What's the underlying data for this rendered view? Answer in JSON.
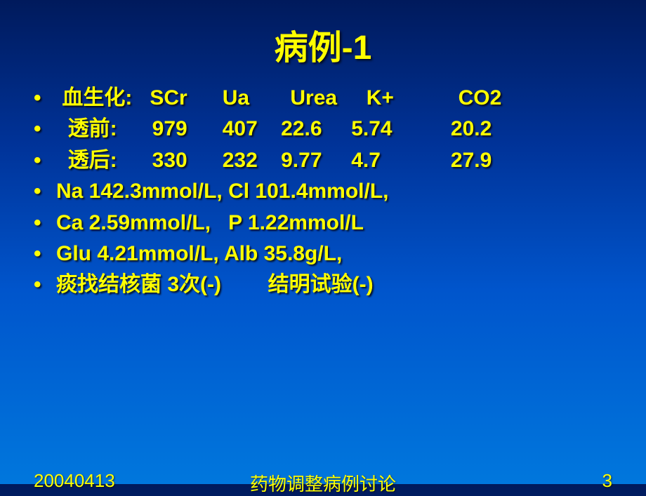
{
  "title": "病例-1",
  "bullets": [
    " 血生化:   SCr      Ua       Urea     K+           CO2",
    "  透前:      979      407    22.6     5.74          20.2",
    "  透后:      330      232    9.77     4.7            27.9",
    "Na 142.3mmol/L, Cl 101.4mmol/L,",
    "Ca 2.59mmol/L,   P 1.22mmol/L",
    "Glu 4.21mmol/L, Alb 35.8g/L,",
    "痰找结核菌 3次(-)        结明试验(-)"
  ],
  "footer": {
    "date": "20040413",
    "doc_title": "药物调整病例讨论",
    "page": "3"
  },
  "colors": {
    "text": "#ffff00",
    "bg_top": "#001a5c",
    "bg_bottom": "#0077dd"
  }
}
